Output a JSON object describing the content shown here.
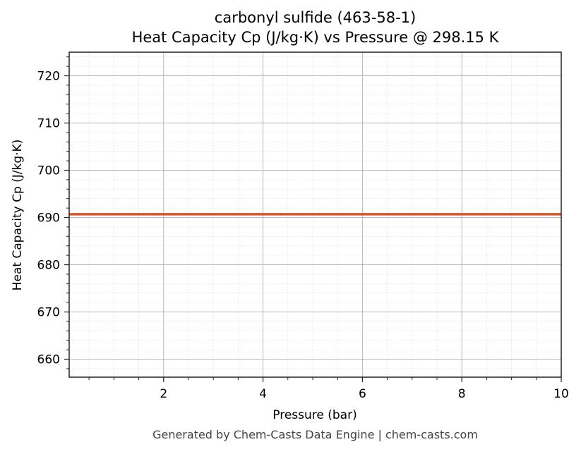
{
  "chart_data": {
    "type": "line",
    "title": "carbonyl sulfide (463-58-1)",
    "subtitle": "Heat Capacity Cp (J/kg·K) vs Pressure @ 298.15 K",
    "xlabel": "Pressure (bar)",
    "ylabel": "Heat Capacity Cp (J/kg·K)",
    "xlim": [
      0.1,
      10
    ],
    "ylim": [
      656.2,
      725
    ],
    "xticks": [
      2,
      4,
      6,
      8,
      10
    ],
    "yticks": [
      660,
      670,
      680,
      690,
      700,
      710,
      720
    ],
    "grid": true,
    "legend": null,
    "series": [
      {
        "name": "Cp",
        "color": "#D4562A",
        "x": [
          0.1,
          1,
          2,
          3,
          4,
          5,
          6,
          7,
          8,
          9,
          10
        ],
        "values": [
          690.7,
          690.7,
          690.7,
          690.7,
          690.7,
          690.7,
          690.7,
          690.7,
          690.7,
          690.7,
          690.7
        ]
      }
    ]
  },
  "header": {
    "title": "carbonyl sulfide (463-58-1)",
    "subtitle": "Heat Capacity Cp (J/kg·K) vs Pressure @ 298.15 K"
  },
  "axes": {
    "xlabel": "Pressure (bar)",
    "ylabel": "Heat Capacity Cp (J/kg·K)",
    "xtick_labels": [
      "2",
      "4",
      "6",
      "8",
      "10"
    ],
    "ytick_labels": [
      "660",
      "670",
      "680",
      "690",
      "700",
      "710",
      "720"
    ]
  },
  "footer": {
    "text": "Generated by Chem-Casts Data Engine | chem-casts.com"
  }
}
